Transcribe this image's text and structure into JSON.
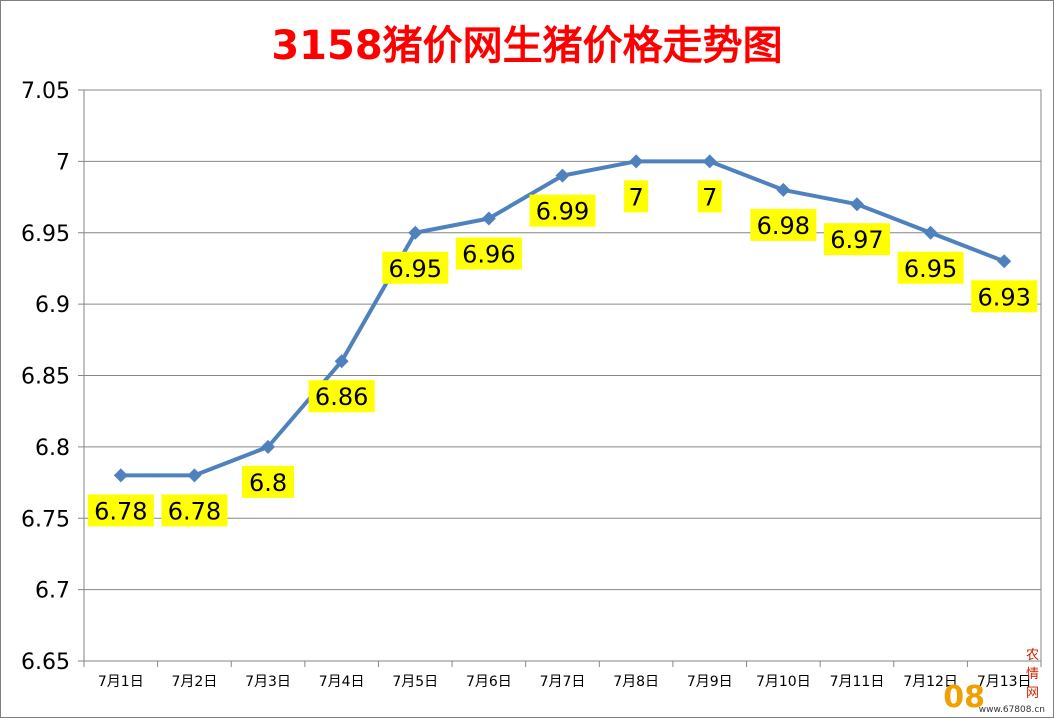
{
  "title": "3158猪价网生猪价格走势图",
  "chart_data": {
    "type": "line",
    "title": "3158猪价网生猪价格走势图",
    "categories": [
      "7月1日",
      "7月2日",
      "7月3日",
      "7月4日",
      "7月5日",
      "7月6日",
      "7月7日",
      "7月8日",
      "7月9日",
      "7月10日",
      "7月11日",
      "7月12日",
      "7月13日"
    ],
    "series": [
      {
        "values": [
          6.78,
          6.78,
          6.8,
          6.86,
          6.95,
          6.96,
          6.99,
          7,
          7,
          6.98,
          6.97,
          6.95,
          6.93
        ]
      }
    ],
    "data_labels": [
      "6.78",
      "6.78",
      "6.8",
      "6.86",
      "6.95",
      "6.96",
      "6.99",
      "7",
      "7",
      "6.98",
      "6.97",
      "6.95",
      "6.93"
    ],
    "y_ticks": [
      "6.65",
      "6.7",
      "6.75",
      "6.8",
      "6.85",
      "6.9",
      "6.95",
      "7",
      "7.05"
    ],
    "ylim": [
      6.65,
      7.05
    ],
    "ystep": 0.05,
    "grid": true,
    "legend": "none",
    "colors": {
      "line": "#4f81bd",
      "label_bg": "#ffff00",
      "grid": "#868686",
      "title": "#ff0000"
    }
  },
  "watermark": {
    "number": "08",
    "name": "农情网",
    "url": "www.67808.cn"
  }
}
